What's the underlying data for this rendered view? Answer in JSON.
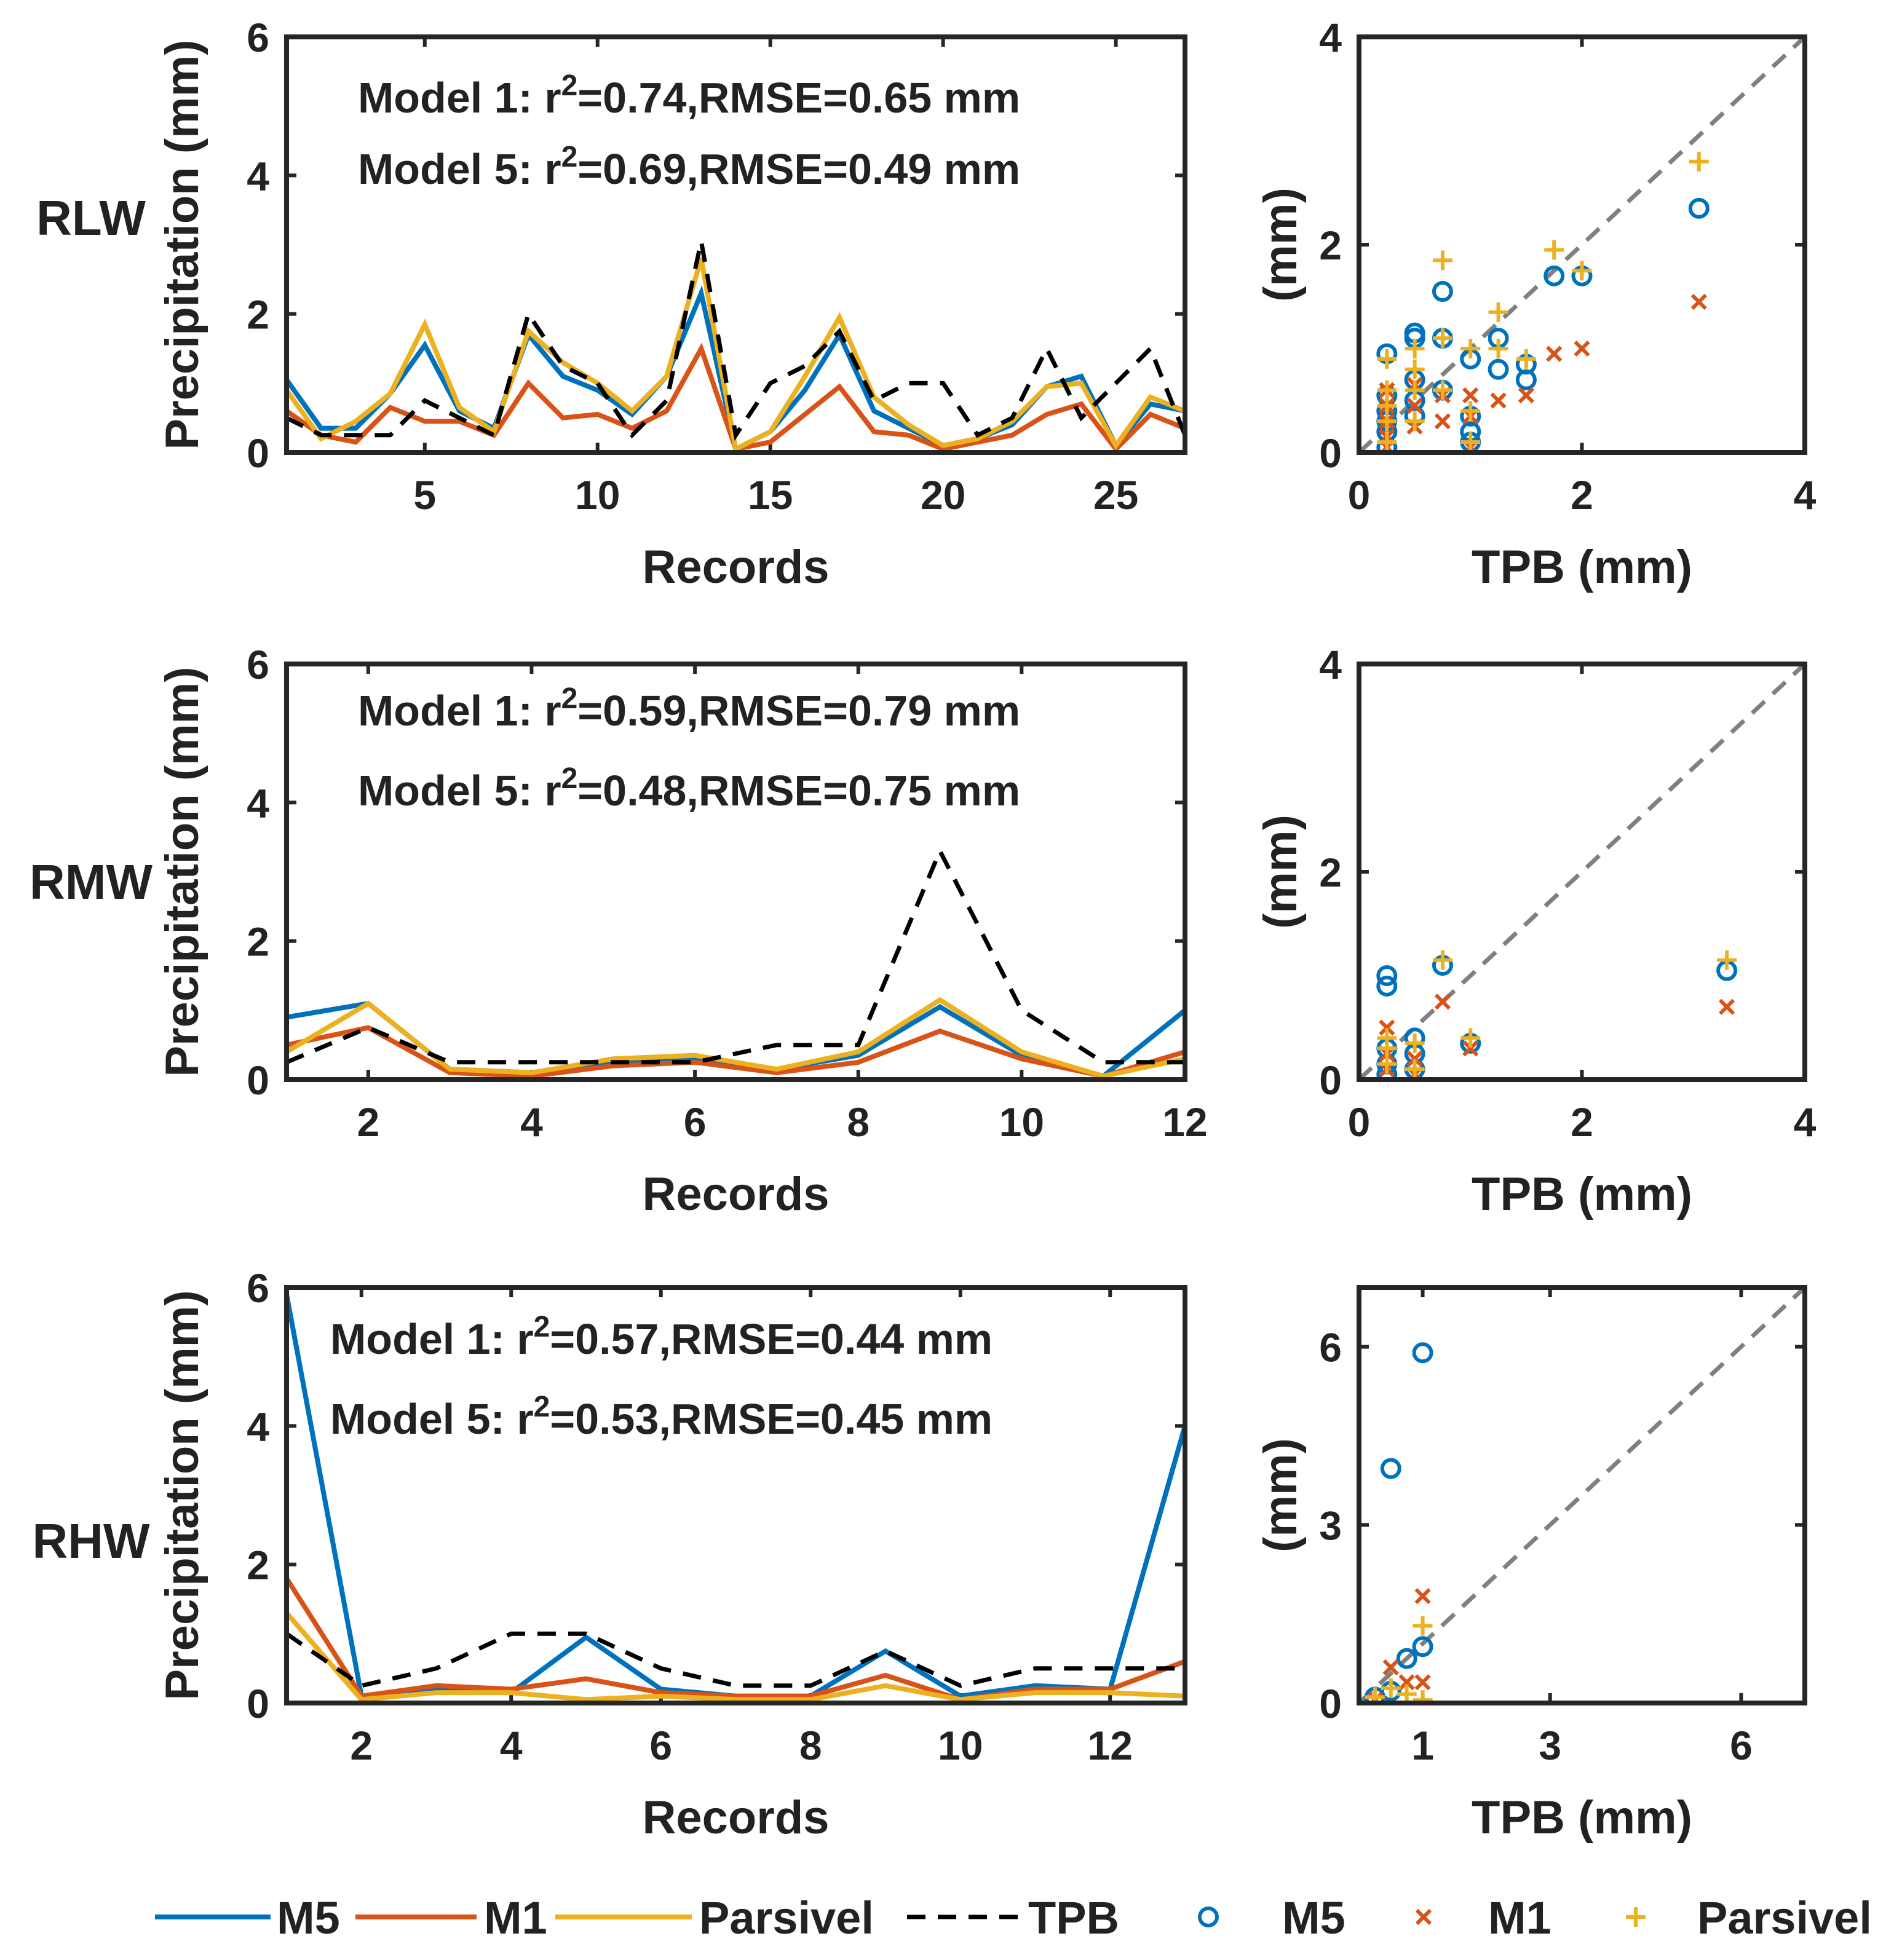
{
  "chart_data": [
    {
      "type": "line",
      "row": "RLW",
      "title": "",
      "xlabel": "Records",
      "ylabel": "Precipitation (mm)",
      "xlim": [
        1,
        27
      ],
      "ylim": [
        0,
        6
      ],
      "xticks": [
        5,
        10,
        15,
        20,
        25
      ],
      "yticks": [
        0,
        2,
        4,
        6
      ],
      "x": [
        1,
        2,
        3,
        4,
        5,
        6,
        7,
        8,
        9,
        10,
        11,
        12,
        13,
        14,
        15,
        16,
        17,
        18,
        19,
        20,
        21,
        22,
        23,
        24,
        25,
        26,
        27
      ],
      "series": [
        {
          "name": "M5",
          "values": [
            1.05,
            0.35,
            0.35,
            0.85,
            1.55,
            0.6,
            0.35,
            1.7,
            1.1,
            0.9,
            0.55,
            1.1,
            2.3,
            0.05,
            0.3,
            0.9,
            1.7,
            0.6,
            0.35,
            0.1,
            0.2,
            0.4,
            0.95,
            1.1,
            0.1,
            0.7,
            0.6
          ]
        },
        {
          "name": "M1",
          "values": [
            0.6,
            0.25,
            0.15,
            0.65,
            0.45,
            0.45,
            0.25,
            1.0,
            0.5,
            0.55,
            0.35,
            0.6,
            1.5,
            0.05,
            0.15,
            0.55,
            0.95,
            0.3,
            0.25,
            0.05,
            0.15,
            0.25,
            0.55,
            0.7,
            0.05,
            0.55,
            0.35
          ]
        },
        {
          "name": "Parsivel",
          "values": [
            0.9,
            0.2,
            0.45,
            0.85,
            1.85,
            0.65,
            0.3,
            1.75,
            1.3,
            1.0,
            0.6,
            1.1,
            2.8,
            0.05,
            0.3,
            1.1,
            1.95,
            0.8,
            0.4,
            0.1,
            0.2,
            0.45,
            0.95,
            1.0,
            0.1,
            0.8,
            0.6
          ]
        },
        {
          "name": "TPB",
          "values": [
            0.5,
            0.25,
            0.25,
            0.25,
            0.75,
            0.5,
            0.25,
            2.0,
            1.25,
            1.0,
            0.25,
            0.75,
            3.05,
            0.25,
            1.0,
            1.25,
            1.75,
            0.75,
            1.0,
            1.0,
            0.25,
            0.5,
            1.5,
            0.5,
            1.0,
            1.5,
            0.25
          ]
        }
      ],
      "annotations": [
        "Model 1: r",
        "2",
        "=0.74,RMSE=0.65 mm",
        "Model 5: r",
        "2",
        "=0.69,RMSE=0.49 mm"
      ]
    },
    {
      "type": "scatter",
      "row": "RLW",
      "xlabel": "TPB (mm)",
      "ylabel": "(mm)",
      "xlim": [
        0,
        4
      ],
      "ylim": [
        0,
        4
      ],
      "xticks": [
        0,
        2,
        4
      ],
      "yticks": [
        0,
        2,
        4
      ],
      "reference_line": "1:1",
      "series": [
        {
          "name": "M5",
          "marker": "o",
          "points": [
            [
              0.25,
              0.95
            ],
            [
              0.25,
              0.55
            ],
            [
              0.25,
              0.4
            ],
            [
              0.25,
              0.3
            ],
            [
              0.25,
              0.2
            ],
            [
              0.25,
              0.05
            ],
            [
              0.5,
              1.1
            ],
            [
              0.5,
              1.15
            ],
            [
              0.5,
              0.7
            ],
            [
              0.5,
              0.5
            ],
            [
              0.5,
              0.35
            ],
            [
              0.75,
              1.55
            ],
            [
              0.75,
              1.1
            ],
            [
              0.75,
              0.6
            ],
            [
              1.0,
              0.9
            ],
            [
              1.0,
              0.35
            ],
            [
              1.0,
              0.2
            ],
            [
              1.0,
              0.1
            ],
            [
              1.25,
              1.1
            ],
            [
              1.25,
              0.8
            ],
            [
              1.5,
              0.85
            ],
            [
              1.5,
              0.7
            ],
            [
              1.75,
              1.7
            ],
            [
              2.0,
              1.7
            ],
            [
              3.05,
              2.35
            ]
          ]
        },
        {
          "name": "M1",
          "marker": "x",
          "points": [
            [
              0.25,
              0.6
            ],
            [
              0.25,
              0.45
            ],
            [
              0.25,
              0.3
            ],
            [
              0.25,
              0.15
            ],
            [
              0.25,
              0.05
            ],
            [
              0.5,
              0.65
            ],
            [
              0.5,
              0.45
            ],
            [
              0.5,
              0.25
            ],
            [
              0.75,
              0.55
            ],
            [
              0.75,
              0.3
            ],
            [
              1.0,
              0.55
            ],
            [
              1.0,
              0.35
            ],
            [
              1.0,
              0.05
            ],
            [
              1.25,
              0.5
            ],
            [
              1.5,
              0.55
            ],
            [
              1.75,
              0.95
            ],
            [
              2.0,
              1.0
            ],
            [
              3.05,
              1.45
            ]
          ]
        },
        {
          "name": "Parsivel",
          "marker": "+",
          "points": [
            [
              0.25,
              0.9
            ],
            [
              0.25,
              0.6
            ],
            [
              0.25,
              0.45
            ],
            [
              0.25,
              0.3
            ],
            [
              0.25,
              0.1
            ],
            [
              0.5,
              1.0
            ],
            [
              0.5,
              0.8
            ],
            [
              0.5,
              0.6
            ],
            [
              0.5,
              0.3
            ],
            [
              0.75,
              1.85
            ],
            [
              0.75,
              1.1
            ],
            [
              0.75,
              0.6
            ],
            [
              1.0,
              1.0
            ],
            [
              1.0,
              0.4
            ],
            [
              1.0,
              0.1
            ],
            [
              1.25,
              1.35
            ],
            [
              1.25,
              1.0
            ],
            [
              1.5,
              0.9
            ],
            [
              1.75,
              1.95
            ],
            [
              2.0,
              1.75
            ],
            [
              3.05,
              2.8
            ]
          ]
        }
      ]
    },
    {
      "type": "line",
      "row": "RMW",
      "xlabel": "Records",
      "ylabel": "Precipitation (mm)",
      "xlim": [
        1,
        12
      ],
      "ylim": [
        0,
        6
      ],
      "xticks": [
        2,
        4,
        6,
        8,
        10,
        12
      ],
      "yticks": [
        0,
        2,
        4,
        6
      ],
      "x": [
        1,
        2,
        3,
        4,
        5,
        6,
        7,
        8,
        9,
        10,
        11,
        12
      ],
      "series": [
        {
          "name": "M5",
          "values": [
            0.9,
            1.1,
            0.15,
            0.1,
            0.25,
            0.3,
            0.15,
            0.35,
            1.05,
            0.35,
            0.05,
            1.0
          ]
        },
        {
          "name": "M1",
          "values": [
            0.5,
            0.75,
            0.1,
            0.05,
            0.2,
            0.25,
            0.1,
            0.25,
            0.7,
            0.3,
            0.05,
            0.4
          ]
        },
        {
          "name": "Parsivel",
          "values": [
            0.4,
            1.1,
            0.15,
            0.1,
            0.3,
            0.35,
            0.15,
            0.4,
            1.15,
            0.4,
            0.05,
            0.3
          ]
        },
        {
          "name": "TPB",
          "values": [
            0.25,
            0.75,
            0.25,
            0.25,
            0.25,
            0.25,
            0.5,
            0.5,
            3.3,
            1.0,
            0.25,
            0.25
          ]
        }
      ],
      "annotations": [
        "Model 1: r",
        "2",
        "=0.59,RMSE=0.79 mm",
        "Model 5: r",
        "2",
        "=0.48,RMSE=0.75 mm"
      ]
    },
    {
      "type": "scatter",
      "row": "RMW",
      "xlabel": "TPB (mm)",
      "ylabel": "(mm)",
      "xlim": [
        0,
        4
      ],
      "ylim": [
        0,
        4
      ],
      "xticks": [
        0,
        2,
        4
      ],
      "yticks": [
        0,
        2,
        4
      ],
      "reference_line": "1:1",
      "series": [
        {
          "name": "M5",
          "marker": "o",
          "points": [
            [
              0.25,
              1.0
            ],
            [
              0.25,
              0.9
            ],
            [
              0.25,
              0.3
            ],
            [
              0.25,
              0.15
            ],
            [
              0.25,
              0.05
            ],
            [
              0.5,
              0.4
            ],
            [
              0.5,
              0.25
            ],
            [
              0.5,
              0.1
            ],
            [
              0.75,
              1.1
            ],
            [
              1.0,
              0.35
            ],
            [
              3.3,
              1.05
            ]
          ]
        },
        {
          "name": "M1",
          "marker": "x",
          "points": [
            [
              0.25,
              0.5
            ],
            [
              0.25,
              0.25
            ],
            [
              0.25,
              0.1
            ],
            [
              0.5,
              0.2
            ],
            [
              0.5,
              0.05
            ],
            [
              0.75,
              0.75
            ],
            [
              1.0,
              0.3
            ],
            [
              3.3,
              0.7
            ]
          ]
        },
        {
          "name": "Parsivel",
          "marker": "+",
          "points": [
            [
              0.25,
              0.4
            ],
            [
              0.25,
              0.3
            ],
            [
              0.25,
              0.15
            ],
            [
              0.5,
              0.35
            ],
            [
              0.5,
              0.1
            ],
            [
              0.75,
              1.15
            ],
            [
              1.0,
              0.4
            ],
            [
              3.3,
              1.15
            ]
          ]
        }
      ]
    },
    {
      "type": "line",
      "row": "RHW",
      "xlabel": "Records",
      "ylabel": "Precipitation (mm)",
      "xlim": [
        1,
        13
      ],
      "ylim": [
        0,
        6
      ],
      "xticks": [
        2,
        4,
        6,
        8,
        10,
        12
      ],
      "yticks": [
        0,
        2,
        4,
        6
      ],
      "x": [
        1,
        2,
        3,
        4,
        5,
        6,
        7,
        8,
        9,
        10,
        11,
        12,
        13
      ],
      "series": [
        {
          "name": "M5",
          "values": [
            5.9,
            0.1,
            0.2,
            0.15,
            0.95,
            0.2,
            0.1,
            0.1,
            0.75,
            0.1,
            0.25,
            0.2,
            4.0
          ]
        },
        {
          "name": "M1",
          "values": [
            1.8,
            0.1,
            0.25,
            0.2,
            0.35,
            0.15,
            0.1,
            0.1,
            0.4,
            0.05,
            0.2,
            0.2,
            0.6
          ]
        },
        {
          "name": "Parsivel",
          "values": [
            1.3,
            0.05,
            0.15,
            0.15,
            0.05,
            0.1,
            0.05,
            0.05,
            0.25,
            0.05,
            0.15,
            0.15,
            0.1
          ]
        },
        {
          "name": "TPB",
          "values": [
            1.0,
            0.25,
            0.5,
            1.0,
            1.0,
            0.5,
            0.25,
            0.25,
            0.75,
            0.25,
            0.5,
            0.5,
            0.5
          ]
        }
      ],
      "annotations": [
        "Model 1: r",
        "2",
        "=0.57,RMSE=0.44 mm",
        "Model 5: r",
        "2",
        "=0.53,RMSE=0.45 mm"
      ]
    },
    {
      "type": "scatter",
      "row": "RHW",
      "xlabel": "TPB (mm)",
      "ylabel": "(mm)",
      "xlim": [
        0,
        7
      ],
      "ylim": [
        0,
        7
      ],
      "xticks": [
        1,
        3,
        6
      ],
      "yticks": [
        0,
        3,
        6
      ],
      "reference_line": "1:1",
      "series": [
        {
          "name": "M5",
          "marker": "o",
          "points": [
            [
              0.25,
              0.1
            ],
            [
              0.5,
              0.2
            ],
            [
              0.5,
              3.95
            ],
            [
              0.75,
              0.75
            ],
            [
              1.0,
              0.95
            ],
            [
              1.0,
              5.9
            ]
          ]
        },
        {
          "name": "M1",
          "marker": "x",
          "points": [
            [
              0.25,
              0.05
            ],
            [
              0.5,
              0.6
            ],
            [
              0.75,
              0.35
            ],
            [
              1.0,
              0.35
            ],
            [
              1.0,
              1.8
            ]
          ]
        },
        {
          "name": "Parsivel",
          "marker": "+",
          "points": [
            [
              0.25,
              0.1
            ],
            [
              0.5,
              0.25
            ],
            [
              0.75,
              0.15
            ],
            [
              1.0,
              0.05
            ],
            [
              1.0,
              1.3
            ]
          ]
        }
      ]
    }
  ],
  "row_labels": [
    "RLW",
    "RMW",
    "RHW"
  ],
  "legend": {
    "placement": "bottom",
    "items": [
      {
        "label": "M5",
        "kind": "line"
      },
      {
        "label": "M1",
        "kind": "line"
      },
      {
        "label": "Parsivel",
        "kind": "line"
      },
      {
        "label": "TPB",
        "kind": "dashed"
      },
      {
        "label": "M5",
        "kind": "marker-o"
      },
      {
        "label": "M1",
        "kind": "marker-x"
      },
      {
        "label": "Parsivel",
        "kind": "marker-plus"
      }
    ]
  },
  "colors": {
    "M5": "#0072BD",
    "M1": "#D95319",
    "Parsivel": "#EDB120",
    "TPB": "#000000",
    "reference": "#808080",
    "axis": "#262626"
  }
}
